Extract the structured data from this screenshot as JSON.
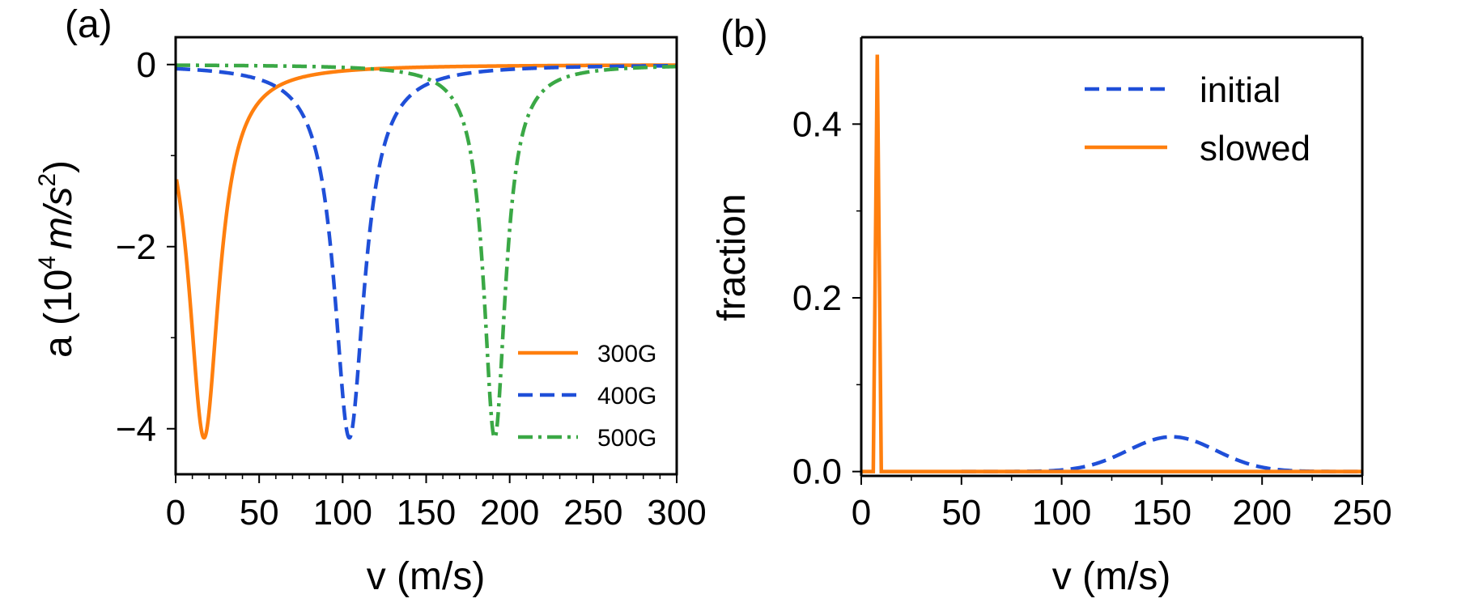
{
  "chart_data": [
    {
      "panel": "(a)",
      "type": "line",
      "xlabel": "v (m/s)",
      "ylabel_base": "a (10",
      "ylabel_exp": "4",
      "ylabel_unit": "m/s",
      "ylabel_unit_exp": "2",
      "ylabel_close": ")",
      "xlim": [
        0,
        300
      ],
      "ylim": [
        -4.5,
        0.3
      ],
      "xticks": [
        0,
        50,
        100,
        150,
        200,
        250,
        300
      ],
      "yticks": [
        0,
        -2,
        -4
      ],
      "ytick_labels": [
        "0",
        "−2",
        "−4"
      ],
      "legend_position": "lower-right",
      "series": [
        {
          "name": "300G",
          "color": "#ff7f0e",
          "style": "solid",
          "center": 17,
          "depth": -4.1,
          "width": 11,
          "v_start": 0.5
        },
        {
          "name": "400G",
          "color": "#1f4fd8",
          "style": "dashed",
          "center": 104,
          "depth": -4.1,
          "width": 11,
          "v_start": 0
        },
        {
          "name": "500G",
          "color": "#3aa845",
          "style": "dashdot",
          "center": 191,
          "depth": -4.1,
          "width": 8,
          "v_start": 0
        }
      ]
    },
    {
      "panel": "(b)",
      "type": "line",
      "xlabel": "v (m/s)",
      "ylabel": "fraction",
      "xlim": [
        0,
        250
      ],
      "ylim": [
        -0.005,
        0.5
      ],
      "xticks": [
        0,
        50,
        100,
        150,
        200,
        250
      ],
      "yticks": [
        0.0,
        0.2,
        0.4
      ],
      "ytick_labels": [
        "0.0",
        "0.2",
        "0.4"
      ],
      "legend_position": "top-right",
      "series": [
        {
          "name": "initial",
          "color": "#1f4fd8",
          "style": "dashed",
          "peak_v": 155,
          "peak_value": 0.04,
          "sigma": 22
        },
        {
          "name": "slowed",
          "color": "#ff7f0e",
          "style": "solid",
          "peak_v": 8,
          "peak_value": 0.48
        }
      ]
    }
  ]
}
